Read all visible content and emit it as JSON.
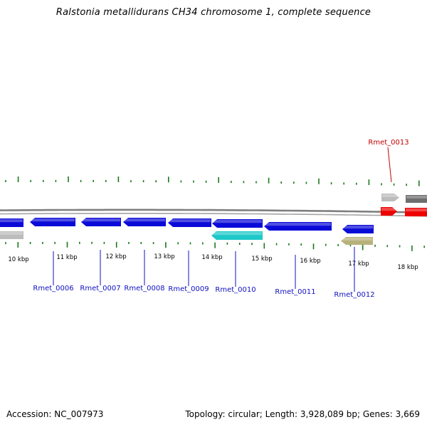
{
  "title": "Ralstonia metallidurans CH34 chromosome 1, complete sequence",
  "footer": {
    "accession": "Accession: NC_007973",
    "summary": "Topology: circular; Length: 3,928,089 bp; Genes: 3,669"
  },
  "colors": {
    "backbone": "#7f7f7f",
    "tick": "#1a7a1a",
    "gene_label": "#1010c0",
    "highlight_label": "#c00000",
    "blue_gene": "#0a0ad8",
    "cyan_gene": "#1ec8c8",
    "khaki_gene": "#b7b17a",
    "gray_gene": "#bcbcbc",
    "dark_gray_gene": "#6e6e6e",
    "red_gene": "#ee0000"
  },
  "scale_labels": [
    "10 kbp",
    "11 kbp",
    "12 kbp",
    "13 kbp",
    "14 kbp",
    "15 kbp",
    "16 kbp",
    "17 kbp",
    "18 kbp"
  ],
  "gene_labels": [
    {
      "text": "Rmet_0006",
      "color": "blue"
    },
    {
      "text": "Rmet_0007",
      "color": "blue"
    },
    {
      "text": "Rmet_0008",
      "color": "blue"
    },
    {
      "text": "Rmet_0009",
      "color": "blue"
    },
    {
      "text": "Rmet_0010",
      "color": "blue"
    },
    {
      "text": "Rmet_0011",
      "color": "blue"
    },
    {
      "text": "Rmet_0012",
      "color": "blue"
    },
    {
      "text": "Rmet_0013",
      "color": "red"
    }
  ],
  "features": [
    {
      "strand": "reverse",
      "color": "blue_gene"
    },
    {
      "strand": "reverse",
      "color": "blue_gene"
    },
    {
      "strand": "reverse",
      "color": "blue_gene"
    },
    {
      "strand": "reverse",
      "color": "blue_gene"
    },
    {
      "strand": "reverse",
      "color": "blue_gene"
    },
    {
      "strand": "reverse",
      "color": "blue_gene"
    },
    {
      "strand": "reverse",
      "color": "blue_gene"
    },
    {
      "strand": "reverse",
      "color": "blue_gene"
    },
    {
      "strand": "reverse",
      "color": "cyan_gene"
    },
    {
      "strand": "reverse",
      "color": "gray_gene"
    },
    {
      "strand": "reverse",
      "color": "khaki_gene"
    },
    {
      "strand": "forward",
      "color": "gray_gene"
    },
    {
      "strand": "forward",
      "color": "red_gene"
    },
    {
      "strand": "forward",
      "color": "dark_gray_gene"
    },
    {
      "strand": "forward",
      "color": "red_gene"
    }
  ]
}
